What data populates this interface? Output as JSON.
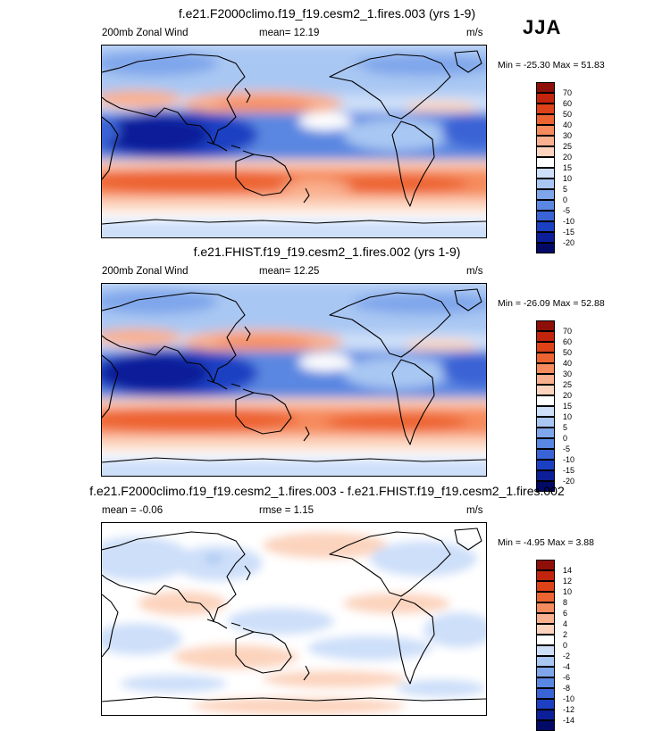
{
  "season": "JJA",
  "colors": {
    "pos": [
      "#fcd4be",
      "#f9b08e",
      "#f68b5d",
      "#ed6432",
      "#dd4218",
      "#c2240d",
      "#8e0e08"
    ],
    "neg": [
      "#cddff9",
      "#a9c7f3",
      "#7fa6eb",
      "#5a87e1",
      "#3a63d5",
      "#1c40c2",
      "#0c1f98",
      "#030a66"
    ],
    "white": "#ffffff"
  },
  "panels": [
    {
      "id": "top",
      "title": "f.e21.F2000climo.f19_f19.cesm2_1.fires.003 (yrs 1-9)",
      "left_label": "200mb Zonal Wind",
      "center_label": "mean=  12.19",
      "units": "m/s",
      "minmax": "Min = -25.30 Max =  51.83",
      "colorbar_levels": [
        "70",
        "60",
        "50",
        "40",
        "30",
        "25",
        "20",
        "15",
        "10",
        "5",
        "0",
        "-5",
        "-10",
        "-15",
        "-20"
      ]
    },
    {
      "id": "middle",
      "title": "f.e21.FHIST.f19_f19.cesm2_1.fires.002 (yrs 1-9)",
      "left_label": "200mb Zonal Wind",
      "center_label": "mean=  12.25",
      "units": "m/s",
      "minmax": "Min = -26.09 Max =  52.88",
      "colorbar_levels": [
        "70",
        "60",
        "50",
        "40",
        "30",
        "25",
        "20",
        "15",
        "10",
        "5",
        "0",
        "-5",
        "-10",
        "-15",
        "-20"
      ]
    },
    {
      "id": "bottom",
      "title": "f.e21.F2000climo.f19_f19.cesm2_1.fires.003 - f.e21.FHIST.f19_f19.cesm2_1.fires.002",
      "left_label": "mean =  -0.06",
      "center_label": "rmse =   1.15",
      "units": "m/s",
      "minmax": "Min =  -4.95 Max =   3.88",
      "colorbar_levels": [
        "14",
        "12",
        "10",
        "8",
        "6",
        "4",
        "2",
        "0",
        "-2",
        "-4",
        "-6",
        "-8",
        "-10",
        "-12",
        "-14"
      ]
    }
  ]
}
